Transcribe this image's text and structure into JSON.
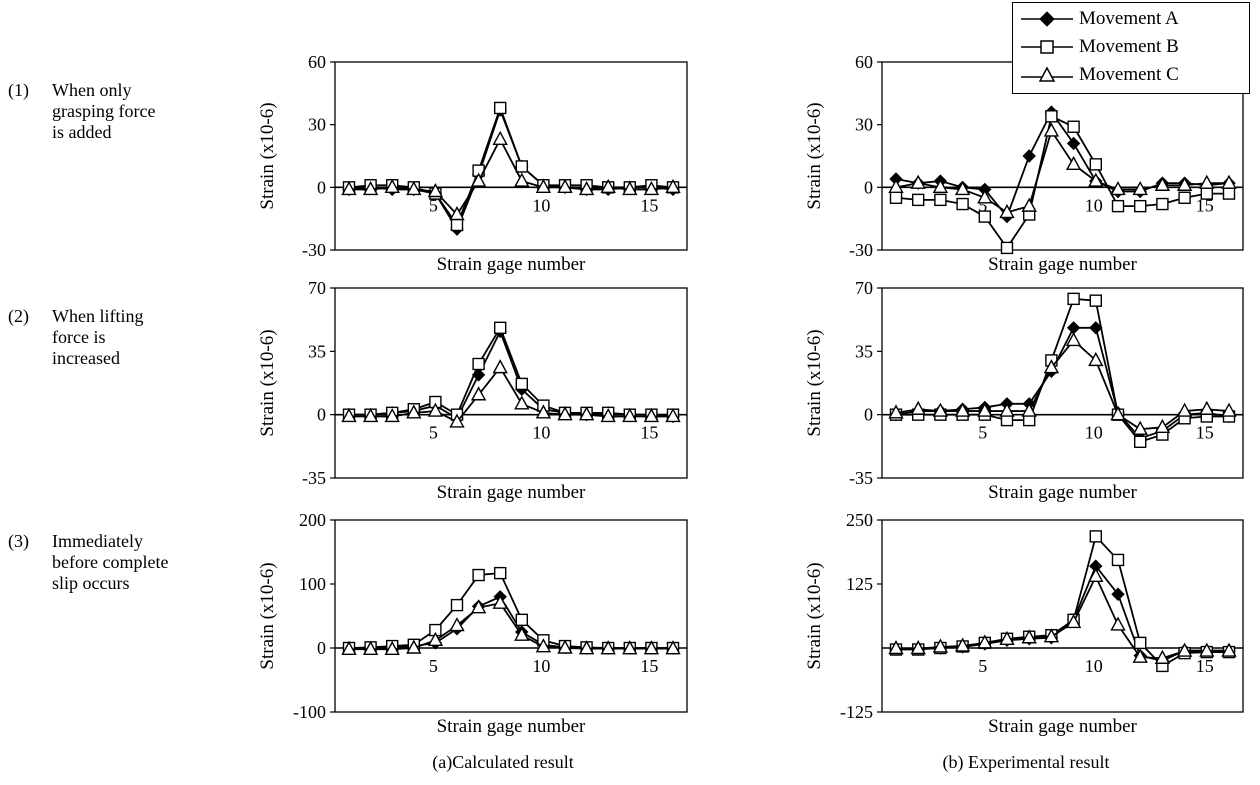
{
  "rows": [
    {
      "num": "(1)",
      "text": "When only\ngrasping force\nis added"
    },
    {
      "num": "(2)",
      "text": "When lifting\nforce is\nincreased"
    },
    {
      "num": "(3)",
      "text": "Immediately\nbefore complete\nslip occurs"
    }
  ],
  "columns": [
    {
      "caption": "(a)Calculated result"
    },
    {
      "caption": "(b) Experimental result"
    }
  ],
  "legend": {
    "position": "top-right",
    "entries": [
      {
        "name": "Movement A",
        "marker": "filled-diamond"
      },
      {
        "name": "Movement B",
        "marker": "open-square"
      },
      {
        "name": "Movement C",
        "marker": "open-triangle"
      }
    ]
  },
  "chart_data": [
    {
      "id": "1a",
      "type": "line",
      "xlabel": "Strain gage number",
      "ylabel": "Strain (x10-6)",
      "xlim": [
        1,
        16
      ],
      "ylim": [
        -30,
        60
      ],
      "yticks": [
        -30,
        0,
        30,
        60
      ],
      "xticks": [
        5,
        10,
        15
      ],
      "grid": false,
      "x": [
        1,
        2,
        3,
        4,
        5,
        6,
        7,
        8,
        9,
        10,
        11,
        12,
        13,
        14,
        15,
        16
      ],
      "series": [
        {
          "name": "Movement A",
          "values": [
            -1,
            0,
            -1,
            -1,
            -3,
            -20,
            6,
            37,
            10,
            1,
            0,
            -1,
            -1,
            0,
            0,
            -1
          ]
        },
        {
          "name": "Movement B",
          "values": [
            0,
            1,
            1,
            0,
            -3,
            -18,
            8,
            38,
            10,
            1,
            1,
            1,
            0,
            0,
            1,
            0
          ]
        },
        {
          "name": "Movement C",
          "values": [
            -1,
            -1,
            0,
            -1,
            -2,
            -13,
            3,
            23,
            3,
            0,
            0,
            -1,
            0,
            -1,
            -1,
            0
          ]
        }
      ]
    },
    {
      "id": "1b",
      "type": "line",
      "xlabel": "Strain gage number",
      "ylabel": "Strain (x10-6)",
      "xlim": [
        1,
        16
      ],
      "ylim": [
        -30,
        60
      ],
      "yticks": [
        -30,
        0,
        30,
        60
      ],
      "xticks": [
        5,
        10,
        15
      ],
      "grid": false,
      "x": [
        1,
        2,
        3,
        4,
        5,
        6,
        7,
        8,
        9,
        10,
        11,
        12,
        13,
        14,
        15,
        16
      ],
      "series": [
        {
          "name": "Movement A",
          "values": [
            4,
            2,
            3,
            0,
            -1,
            -14,
            15,
            36,
            21,
            3,
            -2,
            -2,
            2,
            2,
            1,
            2
          ]
        },
        {
          "name": "Movement B",
          "values": [
            -5,
            -6,
            -6,
            -8,
            -14,
            -29,
            -13,
            34,
            29,
            11,
            -9,
            -9,
            -8,
            -5,
            -3,
            -3
          ]
        },
        {
          "name": "Movement C",
          "values": [
            0,
            2,
            0,
            -1,
            -5,
            -12,
            -9,
            27,
            11,
            3,
            -1,
            -1,
            1,
            1,
            2,
            2
          ]
        }
      ]
    },
    {
      "id": "2a",
      "type": "line",
      "xlabel": "Strain gage number",
      "ylabel": "Strain (x10-6)",
      "xlim": [
        1,
        16
      ],
      "ylim": [
        -35,
        70
      ],
      "yticks": [
        -35,
        0,
        35,
        70
      ],
      "xticks": [
        5,
        10,
        15
      ],
      "grid": false,
      "x": [
        1,
        2,
        3,
        4,
        5,
        6,
        7,
        8,
        9,
        10,
        11,
        12,
        13,
        14,
        15,
        16
      ],
      "series": [
        {
          "name": "Movement A",
          "values": [
            0,
            0,
            1,
            2,
            5,
            -2,
            22,
            46,
            14,
            3,
            1,
            0,
            1,
            0,
            0,
            -1
          ]
        },
        {
          "name": "Movement B",
          "values": [
            0,
            0,
            1,
            3,
            7,
            0,
            28,
            48,
            17,
            5,
            1,
            1,
            1,
            0,
            0,
            0
          ]
        },
        {
          "name": "Movement C",
          "values": [
            -1,
            -1,
            -1,
            1,
            2,
            -4,
            11,
            26,
            6,
            1,
            0,
            0,
            -1,
            -1,
            -1,
            -1
          ]
        }
      ]
    },
    {
      "id": "2b",
      "type": "line",
      "xlabel": "Strain gage number",
      "ylabel": "Strain (x10-6)",
      "xlim": [
        1,
        16
      ],
      "ylim": [
        -35,
        70
      ],
      "yticks": [
        -35,
        0,
        35,
        70
      ],
      "xticks": [
        5,
        10,
        15
      ],
      "grid": false,
      "x": [
        1,
        2,
        3,
        4,
        5,
        6,
        7,
        8,
        9,
        10,
        11,
        12,
        13,
        14,
        15,
        16
      ],
      "series": [
        {
          "name": "Movement A",
          "values": [
            0,
            2,
            2,
            3,
            4,
            6,
            6,
            24,
            48,
            48,
            1,
            -13,
            -9,
            0,
            1,
            -1
          ]
        },
        {
          "name": "Movement B",
          "values": [
            0,
            0,
            0,
            0,
            0,
            -3,
            -3,
            30,
            64,
            63,
            0,
            -15,
            -11,
            -2,
            -1,
            -1
          ]
        },
        {
          "name": "Movement C",
          "values": [
            1,
            3,
            2,
            2,
            2,
            2,
            2,
            26,
            41,
            30,
            0,
            -8,
            -7,
            2,
            3,
            2
          ]
        }
      ]
    },
    {
      "id": "3a",
      "type": "line",
      "xlabel": "Strain gage number",
      "ylabel": "Strain (x10-6)",
      "xlim": [
        1,
        16
      ],
      "ylim": [
        -100,
        200
      ],
      "yticks": [
        -100,
        0,
        100,
        200
      ],
      "xticks": [
        5,
        10,
        15
      ],
      "grid": false,
      "x": [
        1,
        2,
        3,
        4,
        5,
        6,
        7,
        8,
        9,
        10,
        11,
        12,
        13,
        14,
        15,
        16
      ],
      "series": [
        {
          "name": "Movement A",
          "values": [
            0,
            0,
            1,
            3,
            8,
            30,
            65,
            80,
            25,
            5,
            1,
            0,
            0,
            0,
            0,
            0
          ]
        },
        {
          "name": "Movement B",
          "values": [
            0,
            1,
            3,
            5,
            28,
            67,
            114,
            117,
            44,
            12,
            3,
            1,
            0,
            0,
            0,
            0
          ]
        },
        {
          "name": "Movement C",
          "values": [
            -2,
            -2,
            -2,
            0,
            12,
            35,
            63,
            70,
            20,
            2,
            0,
            -1,
            -1,
            -1,
            -1,
            -1
          ]
        }
      ]
    },
    {
      "id": "3b",
      "type": "line",
      "xlabel": "Strain gage number",
      "ylabel": "Strain (x10-6)",
      "xlim": [
        1,
        16
      ],
      "ylim": [
        -125,
        250
      ],
      "yticks": [
        -125,
        125,
        250
      ],
      "xticks": [
        5,
        10,
        15
      ],
      "grid": false,
      "x": [
        1,
        2,
        3,
        4,
        5,
        6,
        7,
        8,
        9,
        10,
        11,
        12,
        13,
        14,
        15,
        16
      ],
      "series": [
        {
          "name": "Movement A",
          "values": [
            -2,
            -2,
            0,
            2,
            8,
            15,
            18,
            20,
            55,
            160,
            105,
            -15,
            -25,
            -5,
            -5,
            -5
          ]
        },
        {
          "name": "Movement B",
          "values": [
            -3,
            -3,
            0,
            3,
            10,
            18,
            22,
            25,
            55,
            218,
            172,
            10,
            -35,
            -10,
            -8,
            -8
          ]
        },
        {
          "name": "Movement C",
          "values": [
            -1,
            -1,
            2,
            4,
            10,
            17,
            20,
            22,
            50,
            140,
            45,
            -18,
            -20,
            -6,
            -6,
            -6
          ]
        }
      ]
    }
  ]
}
